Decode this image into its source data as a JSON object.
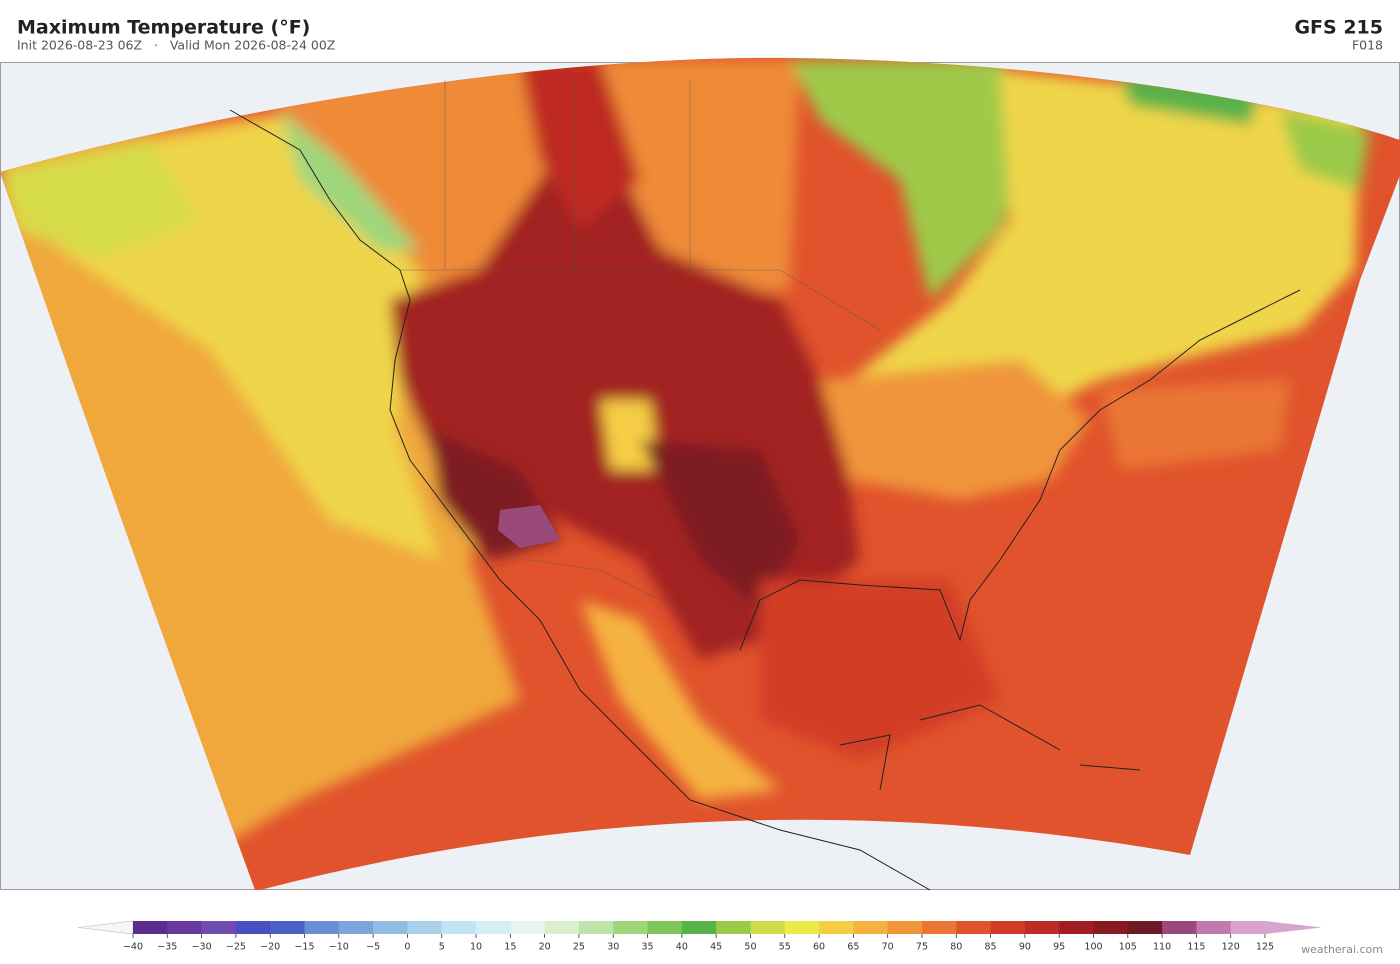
{
  "header": {
    "title": "Maximum Temperature  (°F)",
    "subtitle": "Init 2026-08-23 06Z   ·   Valid Mon 2026-08-24 00Z",
    "model": "GFS  215",
    "forecast": "F018"
  },
  "colorbar": {
    "lim": [
      -40,
      125
    ],
    "ticks": [
      {
        "value": -40,
        "label": "−40"
      },
      {
        "value": -35,
        "label": "−35"
      },
      {
        "value": -30,
        "label": "−30"
      },
      {
        "value": -25,
        "label": "−25"
      },
      {
        "value": -20,
        "label": "−20"
      },
      {
        "value": -15,
        "label": "−15"
      },
      {
        "value": -10,
        "label": "−10"
      },
      {
        "value": -5,
        "label": "−5"
      },
      0,
      5,
      10,
      15,
      20,
      25,
      30,
      35,
      40,
      45,
      50,
      55,
      60,
      65,
      70,
      75,
      80,
      85,
      90,
      95,
      100,
      105,
      110,
      115,
      120,
      125
    ],
    "colors": [
      "#5b2d8e",
      "#6a3a9e",
      "#6e4cb0",
      "#4a4fc0",
      "#4d62c8",
      "#6a8ed6",
      "#7fa4dc",
      "#92bde2",
      "#a9d2ea",
      "#c2e3f0",
      "#d5eef2",
      "#e6f3ee",
      "#d8efd0",
      "#bfe3a8",
      "#9fd67c",
      "#7cc65a",
      "#58b24a",
      "#9bc94a",
      "#cfdb48",
      "#ecea48",
      "#f5cd45",
      "#f5b240",
      "#f0953a",
      "#ea7634",
      "#e0532c",
      "#d33d28",
      "#be2b24",
      "#a01e22",
      "#861a20",
      "#6e1a24",
      "#9a4a7a",
      "#c07ab0",
      "#d8a4cc"
    ],
    "under_color": "#f6f6f6",
    "over_color": "#d8a4cc"
  },
  "watermark": "weatherai.com"
}
